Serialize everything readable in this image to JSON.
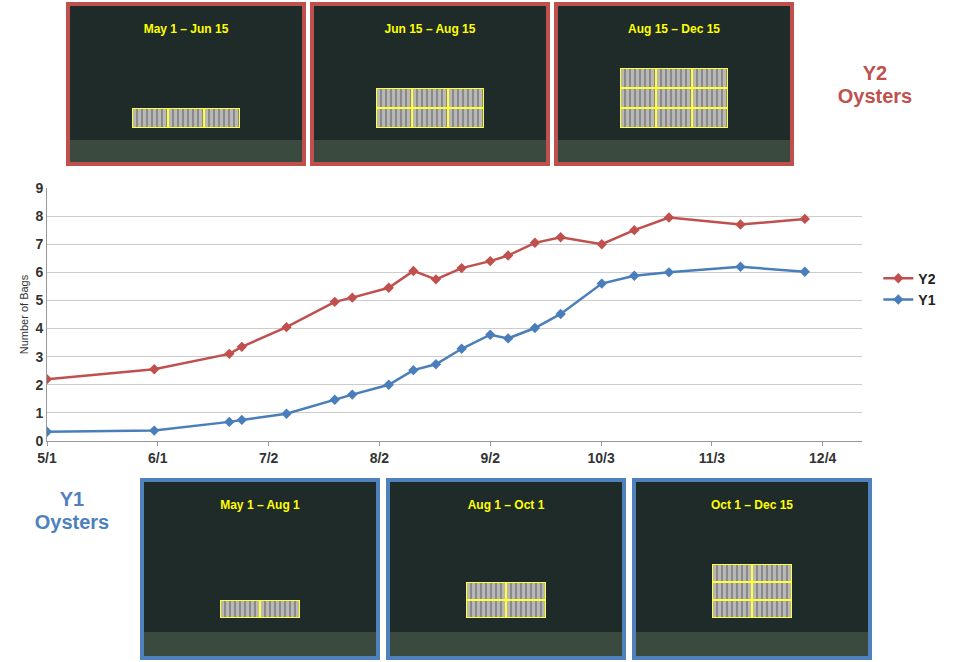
{
  "chart_data": {
    "type": "line",
    "x": [
      0,
      30,
      51,
      54.5,
      67,
      80.5,
      85.4,
      95.6,
      102.5,
      108.8,
      116,
      124,
      129,
      136.5,
      143.7,
      155.2,
      164.3,
      174,
      194,
      212
    ],
    "series": [
      {
        "name": "Y2",
        "color": "#c0504d",
        "values": [
          2.2,
          2.55,
          3.1,
          3.35,
          4.05,
          4.95,
          5.1,
          5.45,
          6.05,
          5.75,
          6.15,
          6.4,
          6.6,
          7.05,
          7.25,
          7.0,
          7.5,
          7.95,
          7.7,
          7.9
        ]
      },
      {
        "name": "Y1",
        "color": "#4a7ebb",
        "values": [
          0.33,
          0.37,
          0.68,
          0.75,
          0.97,
          1.47,
          1.65,
          2.0,
          2.52,
          2.73,
          3.28,
          3.78,
          3.65,
          4.02,
          4.52,
          5.6,
          5.88,
          6.0,
          6.2,
          6.02
        ]
      }
    ],
    "xlim": [
      0,
      228
    ],
    "xticks": [
      {
        "value": 0,
        "label": "5/1"
      },
      {
        "value": 31,
        "label": "6/1"
      },
      {
        "value": 62,
        "label": "7/2"
      },
      {
        "value": 93,
        "label": "8/2"
      },
      {
        "value": 124,
        "label": "9/2"
      },
      {
        "value": 155,
        "label": "10/3"
      },
      {
        "value": 186,
        "label": "11/3"
      },
      {
        "value": 217,
        "label": "12/4"
      }
    ],
    "ylim": [
      0,
      9
    ],
    "yticks": [
      0,
      1,
      2,
      3,
      4,
      5,
      6,
      7,
      8,
      9
    ],
    "ylabel": "Number of Bags",
    "grid": true,
    "legend": "right",
    "marker": "diamond"
  },
  "y2_oysters": {
    "label": "Y2 Oysters",
    "color": "#c0504d",
    "panels": [
      {
        "period": "May 1 – Jun 15",
        "bags": 3
      },
      {
        "period": "Jun 15 – Aug 15",
        "bags": 6
      },
      {
        "period": "Aug 15 – Dec 15",
        "bags": 9
      }
    ]
  },
  "y1_oysters": {
    "label": "Y1 Oysters",
    "color": "#4f81bd",
    "panels": [
      {
        "period": "May 1 – Aug 1",
        "bags": 2
      },
      {
        "period": "Aug 1 – Oct 1",
        "bags": 4
      },
      {
        "period": "Oct 1 – Dec 15",
        "bags": 6
      }
    ]
  }
}
